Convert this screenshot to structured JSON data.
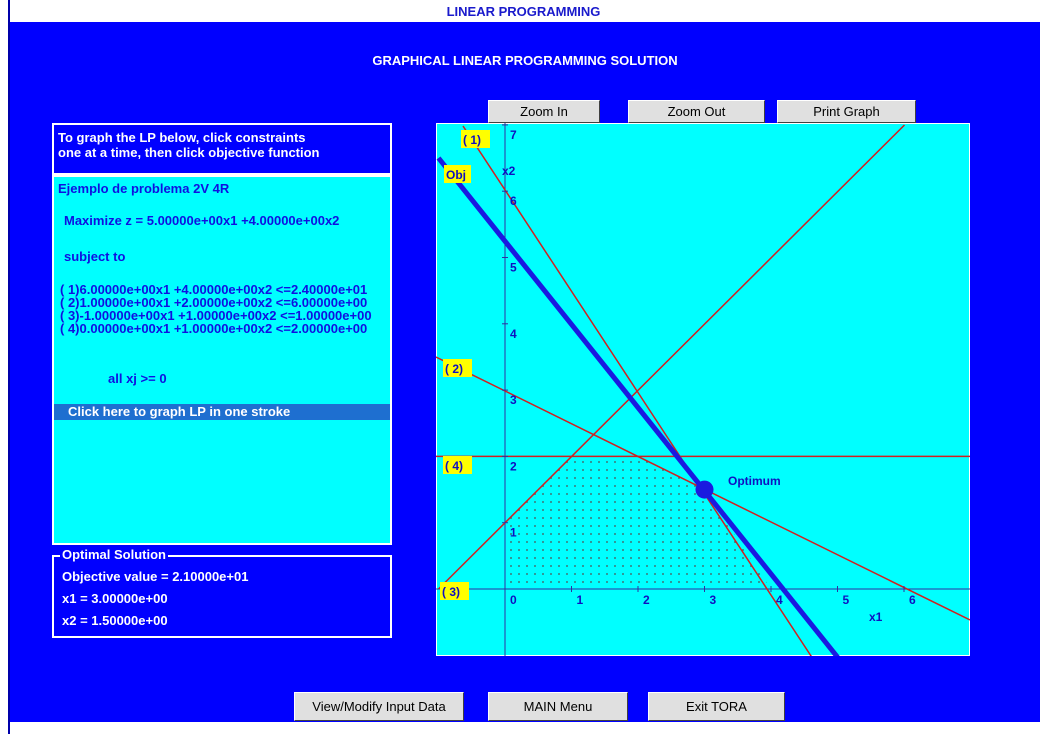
{
  "window_title": "LINEAR PROGRAMMING",
  "heading": "GRAPHICAL LINEAR PROGRAMMING SOLUTION",
  "graph_buttons": [
    "Zoom In",
    "Zoom Out",
    "Print Graph"
  ],
  "instructions": [
    "To graph the LP below, click constraints",
    "one at a time, then click objective function"
  ],
  "problem": [
    "Ejemplo de problema 2V 4R",
    "Maximize z = 5.00000e+00x1 +4.00000e+00x2",
    "subject to",
    "( 1)6.00000e+00x1 +4.00000e+00x2 <=2.40000e+01",
    "( 2)1.00000e+00x1 +2.00000e+00x2 <=6.00000e+00",
    "( 3)-1.00000e+00x1 +1.00000e+00x2 <=1.00000e+00",
    "( 4)0.00000e+00x1 +1.00000e+00x2 <=2.00000e+00",
    "all xj >= 0"
  ],
  "graph_all": "Click here to graph LP in one stroke",
  "optimal_solution": {
    "title": "Optimal Solution",
    "lines": [
      "Objective value = 2.10000e+01",
      "x1 = 3.00000e+00",
      "x2 = 1.50000e+00"
    ]
  },
  "graph": {
    "xticks": [
      0,
      1,
      2,
      3,
      4,
      5,
      6
    ],
    "yticks": [
      1,
      2,
      3,
      4,
      5,
      6,
      7
    ],
    "x_label": "x1",
    "y_label": "x2",
    "labels": [
      "( 1)",
      "Obj",
      "( 2)",
      "( 4)",
      "( 3)"
    ],
    "optimum": "Optimum"
  },
  "bottom_buttons": [
    "View/Modify Input Data",
    "MAIN Menu",
    "Exit TORA"
  ]
}
